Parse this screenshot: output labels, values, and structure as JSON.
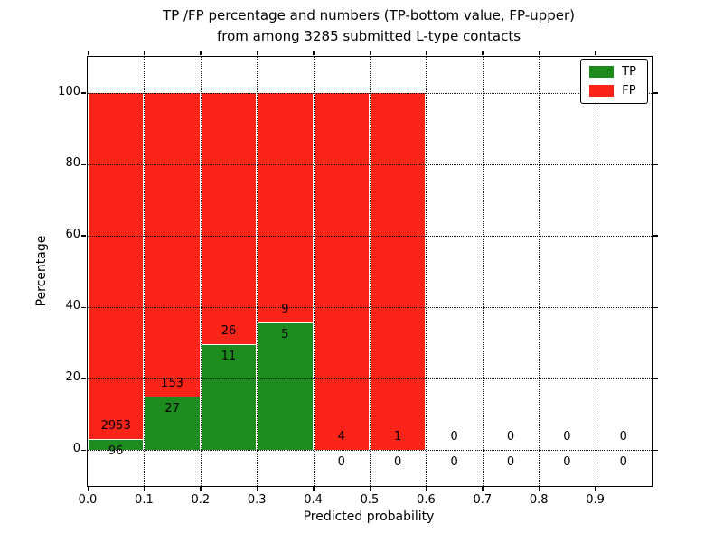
{
  "chart_data": {
    "type": "bar",
    "stacked": true,
    "title": "TP /FP percentage and numbers (TP-bottom value, FP-upper) from among 3285 submitted L-type contacts",
    "title_line1": "TP /FP percentage and numbers (TP-bottom value, FP-upper)",
    "title_line2": "from among 3285 submitted L-type contacts",
    "xlabel": "Predicted probability",
    "ylabel": "Percentage",
    "total_contacts": 3285,
    "xlim": [
      0,
      1
    ],
    "ylim": [
      -10,
      110
    ],
    "xtick_values": [
      0,
      0.1,
      0.2,
      0.3,
      0.4,
      0.5,
      0.6,
      0.7,
      0.8,
      0.9
    ],
    "xtick_labels": [
      "0.0",
      "0.1",
      "0.2",
      "0.3",
      "0.4",
      "0.5",
      "0.6",
      "0.7",
      "0.8",
      "0.9"
    ],
    "ytick_values": [
      0,
      20,
      40,
      60,
      80,
      100
    ],
    "ytick_labels": [
      "0",
      "20",
      "40",
      "60",
      "80",
      "100"
    ],
    "grid": {
      "show": true,
      "style": "dotted",
      "color": "#000000"
    },
    "colors": {
      "tp": "#1e8b1e",
      "fp": "#fb2418",
      "background": "#ffffff",
      "text": "#000000"
    },
    "legend": {
      "position": "upper right",
      "entries": [
        {
          "label": "TP",
          "color": "#1e8b1e"
        },
        {
          "label": "FP",
          "color": "#fb2418"
        }
      ]
    },
    "bins": [
      {
        "range": "0.0-0.1",
        "fp_count": "2953",
        "tp_count": "96",
        "tp_pct": 3.15,
        "fp_pct": 96.85
      },
      {
        "range": "0.1-0.2",
        "fp_count": "153",
        "tp_count": "27",
        "tp_pct": 15.0,
        "fp_pct": 85.0
      },
      {
        "range": "0.2-0.3",
        "fp_count": "26",
        "tp_count": "11",
        "tp_pct": 29.7,
        "fp_pct": 70.3
      },
      {
        "range": "0.3-0.4",
        "fp_count": "9",
        "tp_count": "5",
        "tp_pct": 35.7,
        "fp_pct": 64.3
      },
      {
        "range": "0.4-0.5",
        "fp_count": "4",
        "tp_count": "0",
        "tp_pct": 0,
        "fp_pct": 100
      },
      {
        "range": "0.5-0.6",
        "fp_count": "1",
        "tp_count": "0",
        "tp_pct": 0,
        "fp_pct": 100
      },
      {
        "range": "0.6-0.7",
        "fp_count": "0",
        "tp_count": "0",
        "tp_pct": 0,
        "fp_pct": 0
      },
      {
        "range": "0.7-0.8",
        "fp_count": "0",
        "tp_count": "0",
        "tp_pct": 0,
        "fp_pct": 0
      },
      {
        "range": "0.8-0.9",
        "fp_count": "0",
        "tp_count": "0",
        "tp_pct": 0,
        "fp_pct": 0
      },
      {
        "range": "0.9-1.0",
        "fp_count": "0",
        "tp_count": "0",
        "tp_pct": 0,
        "fp_pct": 0
      }
    ]
  }
}
